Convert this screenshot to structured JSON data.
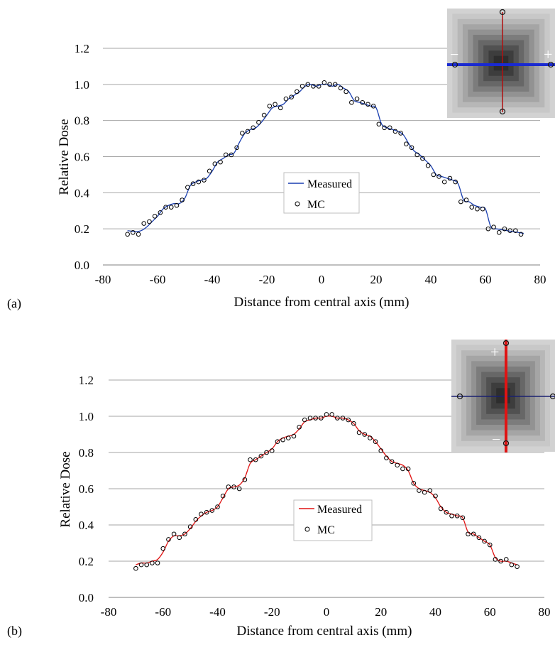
{
  "chart_data": [
    {
      "panel_label": "(a)",
      "type": "line",
      "xlabel": "Distance from central axis (mm)",
      "ylabel": "Relative Dose",
      "xlim": [
        -80,
        80
      ],
      "ylim": [
        0,
        1.2
      ],
      "xticks": [
        -80,
        -60,
        -40,
        -20,
        0,
        20,
        40,
        60,
        80
      ],
      "yticks": [
        0.0,
        0.2,
        0.4,
        0.6,
        0.8,
        1.0,
        1.2
      ],
      "ytick_labels": [
        "0.0",
        "0.2",
        "0.4",
        "0.6",
        "0.8",
        "1.0",
        "1.2"
      ],
      "grid": "horizontal",
      "legend": "center",
      "colors": {
        "measured": "#1a3fb0"
      },
      "series": [
        {
          "name": "Measured",
          "style": "line",
          "x": [
            -71,
            -68,
            -66,
            -64,
            -62,
            -60,
            -58,
            -56,
            -54,
            -52,
            -50,
            -48,
            -46,
            -44,
            -42,
            -40,
            -38,
            -36,
            -34,
            -32,
            -30,
            -28,
            -26,
            -24,
            -22,
            -20,
            -18,
            -16,
            -14,
            -12,
            -10,
            -8,
            -6,
            -4,
            -2,
            0,
            2,
            4,
            6,
            8,
            10,
            12,
            14,
            16,
            18,
            20,
            22,
            24,
            26,
            28,
            30,
            32,
            34,
            36,
            38,
            40,
            42,
            44,
            46,
            48,
            50,
            52,
            54,
            56,
            58,
            60,
            62,
            64,
            66,
            68,
            70,
            72,
            74
          ],
          "y": [
            0.19,
            0.185,
            0.19,
            0.21,
            0.24,
            0.27,
            0.31,
            0.33,
            0.34,
            0.34,
            0.37,
            0.44,
            0.46,
            0.47,
            0.48,
            0.52,
            0.57,
            0.59,
            0.61,
            0.62,
            0.68,
            0.73,
            0.75,
            0.76,
            0.79,
            0.83,
            0.87,
            0.88,
            0.89,
            0.92,
            0.94,
            0.96,
            0.99,
            1.0,
            0.99,
            1.0,
            1.0,
            0.99,
            1.0,
            0.98,
            0.96,
            0.91,
            0.9,
            0.89,
            0.88,
            0.87,
            0.78,
            0.76,
            0.75,
            0.74,
            0.72,
            0.67,
            0.63,
            0.61,
            0.58,
            0.55,
            0.5,
            0.49,
            0.48,
            0.47,
            0.45,
            0.36,
            0.35,
            0.33,
            0.32,
            0.31,
            0.21,
            0.2,
            0.195,
            0.19,
            0.185,
            0.18,
            0.175
          ]
        },
        {
          "name": "MC",
          "style": "marker",
          "x": [
            -71,
            -69,
            -67,
            -65,
            -63,
            -61,
            -59,
            -57,
            -55,
            -53,
            -51,
            -49,
            -47,
            -45,
            -43,
            -41,
            -39,
            -37,
            -35,
            -33,
            -31,
            -29,
            -27,
            -25,
            -23,
            -21,
            -19,
            -17,
            -15,
            -13,
            -11,
            -9,
            -7,
            -5,
            -3,
            -1,
            1,
            3,
            5,
            7,
            9,
            11,
            13,
            15,
            17,
            19,
            21,
            23,
            25,
            27,
            29,
            31,
            33,
            35,
            37,
            39,
            41,
            43,
            45,
            47,
            49,
            51,
            53,
            55,
            57,
            59,
            61,
            63,
            65,
            67,
            69,
            71,
            73
          ],
          "y": [
            0.17,
            0.18,
            0.17,
            0.23,
            0.24,
            0.27,
            0.29,
            0.32,
            0.32,
            0.33,
            0.36,
            0.43,
            0.45,
            0.46,
            0.47,
            0.52,
            0.56,
            0.57,
            0.61,
            0.61,
            0.65,
            0.73,
            0.74,
            0.76,
            0.79,
            0.83,
            0.88,
            0.89,
            0.87,
            0.92,
            0.93,
            0.96,
            0.99,
            1.0,
            0.99,
            0.99,
            1.01,
            1.0,
            1.0,
            0.98,
            0.96,
            0.9,
            0.92,
            0.9,
            0.89,
            0.88,
            0.78,
            0.76,
            0.76,
            0.74,
            0.73,
            0.67,
            0.65,
            0.61,
            0.59,
            0.55,
            0.5,
            0.49,
            0.46,
            0.48,
            0.46,
            0.35,
            0.36,
            0.32,
            0.31,
            0.31,
            0.2,
            0.21,
            0.18,
            0.2,
            0.19,
            0.19,
            0.17
          ]
        }
      ],
      "inset": {
        "scan_axis": "horizontal",
        "signs": {
          "left": "−",
          "right": "+"
        },
        "colors": {
          "scan": "#1a2ad0",
          "other": "#b01010"
        }
      }
    },
    {
      "panel_label": "(b)",
      "type": "line",
      "xlabel": "Distance from central axis (mm)",
      "ylabel": "Relative Dose",
      "xlim": [
        -80,
        80
      ],
      "ylim": [
        0,
        1.2
      ],
      "xticks": [
        -80,
        -60,
        -40,
        -20,
        0,
        20,
        40,
        60,
        80
      ],
      "yticks": [
        0.0,
        0.2,
        0.4,
        0.6,
        0.8,
        1.0,
        1.2
      ],
      "ytick_labels": [
        "0.0",
        "0.2",
        "0.4",
        "0.6",
        "0.8",
        "1.0",
        "1.2"
      ],
      "grid": "horizontal",
      "legend": "center",
      "colors": {
        "measured": "#e01414"
      },
      "series": [
        {
          "name": "Measured",
          "style": "line",
          "x": [
            -70,
            -68,
            -66,
            -64,
            -62,
            -60,
            -58,
            -56,
            -54,
            -52,
            -50,
            -48,
            -46,
            -44,
            -42,
            -40,
            -38,
            -36,
            -34,
            -32,
            -30,
            -28,
            -26,
            -24,
            -22,
            -20,
            -18,
            -16,
            -14,
            -12,
            -10,
            -8,
            -6,
            -4,
            -2,
            0,
            2,
            4,
            6,
            8,
            10,
            12,
            14,
            16,
            18,
            20,
            22,
            24,
            26,
            28,
            30,
            32,
            34,
            36,
            38,
            40,
            42,
            44,
            46,
            48,
            50,
            52,
            54,
            56,
            58,
            60,
            62,
            64,
            66,
            68,
            70
          ],
          "y": [
            0.18,
            0.19,
            0.19,
            0.2,
            0.21,
            0.25,
            0.31,
            0.34,
            0.34,
            0.35,
            0.38,
            0.42,
            0.45,
            0.47,
            0.48,
            0.5,
            0.55,
            0.6,
            0.61,
            0.62,
            0.66,
            0.74,
            0.76,
            0.78,
            0.8,
            0.82,
            0.86,
            0.88,
            0.89,
            0.9,
            0.93,
            0.97,
            0.98,
            0.99,
            0.99,
            1.0,
            1.0,
            0.99,
            0.99,
            0.98,
            0.96,
            0.92,
            0.9,
            0.89,
            0.86,
            0.82,
            0.78,
            0.75,
            0.74,
            0.73,
            0.7,
            0.63,
            0.6,
            0.59,
            0.58,
            0.55,
            0.5,
            0.47,
            0.46,
            0.45,
            0.44,
            0.36,
            0.35,
            0.33,
            0.31,
            0.29,
            0.22,
            0.2,
            0.2,
            0.19,
            0.18
          ]
        },
        {
          "name": "MC",
          "style": "marker",
          "x": [
            -70,
            -68,
            -66,
            -64,
            -62,
            -60,
            -58,
            -56,
            -54,
            -52,
            -50,
            -48,
            -46,
            -44,
            -42,
            -40,
            -38,
            -36,
            -34,
            -32,
            -30,
            -28,
            -26,
            -24,
            -22,
            -20,
            -18,
            -16,
            -14,
            -12,
            -10,
            -8,
            -6,
            -4,
            -2,
            0,
            2,
            4,
            6,
            8,
            10,
            12,
            14,
            16,
            18,
            20,
            22,
            24,
            26,
            28,
            30,
            32,
            34,
            36,
            38,
            40,
            42,
            44,
            46,
            48,
            50,
            52,
            54,
            56,
            58,
            60,
            62,
            64,
            66,
            68,
            70
          ],
          "y": [
            0.16,
            0.18,
            0.18,
            0.19,
            0.19,
            0.27,
            0.32,
            0.35,
            0.33,
            0.35,
            0.39,
            0.43,
            0.46,
            0.47,
            0.48,
            0.5,
            0.56,
            0.61,
            0.61,
            0.6,
            0.65,
            0.76,
            0.76,
            0.78,
            0.8,
            0.81,
            0.86,
            0.87,
            0.88,
            0.89,
            0.94,
            0.98,
            0.99,
            0.99,
            0.99,
            1.01,
            1.01,
            0.99,
            0.99,
            0.98,
            0.96,
            0.91,
            0.9,
            0.88,
            0.86,
            0.81,
            0.77,
            0.75,
            0.73,
            0.71,
            0.71,
            0.63,
            0.59,
            0.58,
            0.59,
            0.56,
            0.49,
            0.47,
            0.45,
            0.45,
            0.44,
            0.35,
            0.35,
            0.33,
            0.31,
            0.29,
            0.21,
            0.2,
            0.21,
            0.18,
            0.17
          ]
        }
      ],
      "inset": {
        "scan_axis": "vertical",
        "signs": {
          "top": "+",
          "bottom": "−"
        },
        "colors": {
          "scan": "#e01414",
          "other": "#1a2070"
        }
      }
    }
  ]
}
